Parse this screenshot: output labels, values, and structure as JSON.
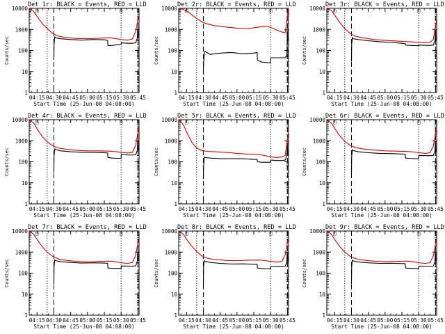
{
  "chart_data": {
    "type": "line",
    "layout": "3x3 grid",
    "shared": {
      "title_suffix": " BLACK = Events, RED = LLD",
      "xlabel": "Start Time (25-Jun-08 04:08:00)",
      "ylabel": "Counts/sec",
      "y_scale": "log",
      "ylim": [
        1,
        10000
      ],
      "y_tick_labels": [
        "1",
        "10",
        "100",
        "1000",
        "10000"
      ],
      "x_range_min": [
        248,
        346
      ],
      "x_ticks_min": [
        255,
        270,
        285,
        300,
        315,
        330,
        345
      ],
      "x_tick_labels": [
        "04:15",
        "04:30",
        "04:45",
        "05:00",
        "05:15",
        "05:30",
        "05:45"
      ],
      "marker_label": "□",
      "series_colors": {
        "events": "#000000",
        "lld": "#dd0000"
      },
      "grid": false
    },
    "panels": [
      {
        "title": "Det 1r",
        "vlines": {
          "dotted": [
            264,
            330
          ],
          "dashed": [
            270,
            345
          ]
        },
        "lld": {
          "x": [
            248,
            252,
            256,
            260,
            264,
            268,
            270,
            274,
            280,
            290,
            300,
            310,
            320,
            326,
            330,
            336,
            340,
            343,
            345,
            346
          ],
          "y": [
            10000,
            7000,
            3500,
            1800,
            1100,
            700,
            600,
            480,
            420,
            370,
            360,
            380,
            400,
            360,
            330,
            310,
            350,
            800,
            3000,
            4000
          ]
        },
        "events": {
          "x": [
            270,
            270.2,
            270.8,
            271.5,
            276,
            285,
            295,
            305,
            315,
            318,
            318.2,
            322,
            328,
            330,
            330.2,
            336,
            340,
            343,
            344.5,
            345,
            345.3
          ],
          "y": [
            35,
            200,
            450,
            400,
            360,
            330,
            310,
            330,
            320,
            300,
            170,
            175,
            190,
            195,
            230,
            220,
            220,
            230,
            400,
            1200,
            400
          ]
        }
      },
      {
        "title": "Det 2r",
        "vlines": {
          "dotted": [
            264,
            330
          ],
          "dashed": [
            270,
            345
          ]
        },
        "lld": {
          "x": [
            248,
            252,
            256,
            260,
            264,
            268,
            270,
            274,
            280,
            290,
            300,
            310,
            320,
            326,
            330,
            336,
            340,
            343,
            345,
            346
          ],
          "y": [
            10000,
            9000,
            7000,
            4800,
            3300,
            2400,
            2100,
            1800,
            1500,
            1300,
            1150,
            1100,
            1300,
            1400,
            1250,
            900,
            750,
            700,
            4000,
            10000
          ]
        },
        "events": {
          "x": [
            270,
            270.2,
            270.8,
            271.5,
            276,
            285,
            295,
            305,
            315,
            318,
            318.2,
            322,
            328,
            330,
            330.2,
            336,
            340,
            343,
            344.5,
            345,
            345.3
          ],
          "y": [
            10,
            25,
            75,
            90,
            65,
            75,
            80,
            70,
            75,
            80,
            35,
            28,
            26,
            26,
            45,
            45,
            45,
            45,
            60,
            700,
            300
          ]
        }
      },
      {
        "title": "Det 3r",
        "vlines": {
          "dotted": [
            264,
            330
          ],
          "dashed": [
            270,
            345
          ]
        },
        "lld": {
          "x": [
            248,
            252,
            256,
            260,
            264,
            268,
            270,
            274,
            280,
            290,
            300,
            310,
            320,
            326,
            330,
            336,
            340,
            343,
            345,
            346
          ],
          "y": [
            10000,
            8000,
            4000,
            2000,
            1100,
            700,
            580,
            470,
            400,
            330,
            300,
            280,
            260,
            250,
            240,
            230,
            240,
            330,
            1500,
            3000
          ]
        },
        "events": {
          "x": [
            270,
            270.2,
            270.8,
            271.5,
            276,
            285,
            295,
            305,
            315,
            318,
            318.2,
            322,
            328,
            330,
            330.2,
            336,
            340,
            343,
            344.5,
            345,
            345.3
          ],
          "y": [
            30,
            200,
            420,
            360,
            330,
            290,
            260,
            240,
            220,
            210,
            180,
            175,
            170,
            170,
            180,
            175,
            175,
            180,
            300,
            900,
            300
          ]
        }
      },
      {
        "title": "Det 4r",
        "vlines": {
          "dotted": [
            264,
            330
          ],
          "dashed": [
            270,
            345
          ]
        },
        "lld": {
          "x": [
            248,
            252,
            256,
            260,
            264,
            268,
            270,
            274,
            280,
            290,
            300,
            310,
            320,
            326,
            330,
            336,
            340,
            343,
            345,
            346
          ],
          "y": [
            10000,
            7000,
            3000,
            1500,
            900,
            620,
            540,
            450,
            400,
            350,
            330,
            330,
            320,
            300,
            280,
            260,
            280,
            600,
            2500,
            4000
          ]
        },
        "events": {
          "x": [
            270,
            270.2,
            270.8,
            271.5,
            276,
            285,
            295,
            305,
            315,
            318,
            318.2,
            322,
            328,
            330,
            330.2,
            336,
            340,
            343,
            344.5,
            345,
            345.3
          ],
          "y": [
            30,
            200,
            420,
            380,
            330,
            300,
            280,
            280,
            270,
            260,
            160,
            150,
            145,
            145,
            220,
            210,
            210,
            215,
            350,
            1000,
            350
          ]
        }
      },
      {
        "title": "Det 5r",
        "vlines": {
          "dotted": [
            264,
            330
          ],
          "dashed": [
            270,
            345
          ]
        },
        "lld": {
          "x": [
            248,
            252,
            256,
            260,
            264,
            268,
            270,
            274,
            280,
            290,
            300,
            310,
            320,
            326,
            330,
            336,
            340,
            343,
            345,
            346
          ],
          "y": [
            10000,
            6000,
            2000,
            800,
            450,
            350,
            330,
            310,
            300,
            280,
            250,
            230,
            220,
            190,
            170,
            160,
            170,
            200,
            1200,
            2500
          ]
        },
        "events": {
          "x": [
            270,
            270.2,
            270.8,
            271.5,
            276,
            285,
            295,
            305,
            315,
            318,
            318.2,
            322,
            328,
            330,
            330.2,
            336,
            340,
            343,
            344.5,
            345,
            345.3
          ],
          "y": [
            15,
            60,
            170,
            160,
            150,
            140,
            140,
            140,
            130,
            130,
            100,
            95,
            95,
            95,
            120,
            115,
            115,
            120,
            200,
            600,
            200
          ]
        }
      },
      {
        "title": "Det 6r",
        "vlines": {
          "dotted": [
            264,
            330
          ],
          "dashed": [
            270,
            345
          ]
        },
        "lld": {
          "x": [
            248,
            252,
            256,
            260,
            264,
            268,
            270,
            274,
            280,
            290,
            300,
            310,
            320,
            326,
            330,
            336,
            340,
            343,
            345,
            346
          ],
          "y": [
            10000,
            7000,
            3200,
            1600,
            950,
            650,
            560,
            470,
            410,
            360,
            330,
            320,
            310,
            290,
            270,
            250,
            270,
            550,
            2200,
            3500
          ]
        },
        "events": {
          "x": [
            270,
            270.2,
            270.8,
            271.5,
            276,
            285,
            295,
            305,
            315,
            318,
            318.2,
            322,
            328,
            330,
            330.2,
            336,
            340,
            343,
            344.5,
            345,
            345.3
          ],
          "y": [
            25,
            180,
            380,
            340,
            300,
            270,
            250,
            245,
            235,
            230,
            150,
            145,
            140,
            140,
            200,
            195,
            195,
            200,
            320,
            900,
            300
          ]
        }
      },
      {
        "title": "Det 7r",
        "vlines": {
          "dotted": [
            264,
            330
          ],
          "dashed": [
            270,
            345
          ]
        },
        "lld": {
          "x": [
            248,
            252,
            256,
            260,
            264,
            268,
            270,
            274,
            280,
            290,
            300,
            310,
            320,
            326,
            330,
            336,
            340,
            343,
            345,
            346
          ],
          "y": [
            10000,
            7000,
            3300,
            1700,
            1000,
            680,
            580,
            470,
            410,
            360,
            340,
            360,
            370,
            340,
            310,
            290,
            320,
            700,
            2800,
            4000
          ]
        },
        "events": {
          "x": [
            270,
            270.2,
            270.8,
            271.5,
            276,
            285,
            295,
            305,
            315,
            318,
            318.2,
            322,
            328,
            330,
            330.2,
            336,
            340,
            343,
            344.5,
            345,
            345.3
          ],
          "y": [
            30,
            200,
            430,
            390,
            350,
            320,
            300,
            310,
            300,
            290,
            175,
            170,
            170,
            170,
            220,
            215,
            215,
            220,
            380,
            1100,
            380
          ]
        }
      },
      {
        "title": "Det 8r",
        "vlines": {
          "dotted": [
            264,
            330
          ],
          "dashed": [
            270,
            345
          ]
        },
        "lld": {
          "x": [
            248,
            252,
            256,
            260,
            264,
            268,
            270,
            274,
            280,
            290,
            300,
            310,
            320,
            326,
            330,
            336,
            340,
            343,
            345,
            346
          ],
          "y": [
            10000,
            7000,
            3400,
            1800,
            1050,
            700,
            600,
            500,
            450,
            400,
            390,
            410,
            420,
            390,
            360,
            340,
            360,
            750,
            3000,
            4500
          ]
        },
        "events": {
          "x": [
            270,
            270.2,
            270.8,
            271.5,
            276,
            285,
            295,
            305,
            315,
            318,
            318.2,
            322,
            328,
            330,
            330.2,
            336,
            340,
            343,
            344.5,
            345,
            345.3
          ],
          "y": [
            25,
            190,
            400,
            360,
            320,
            290,
            270,
            275,
            265,
            260,
            175,
            165,
            160,
            160,
            210,
            205,
            205,
            210,
            350,
            1000,
            350
          ]
        }
      },
      {
        "title": "Det 9r",
        "vlines": {
          "dotted": [
            264,
            330
          ],
          "dashed": [
            270,
            345
          ]
        },
        "lld": {
          "x": [
            248,
            252,
            256,
            260,
            264,
            268,
            270,
            274,
            280,
            290,
            300,
            310,
            320,
            326,
            330,
            336,
            340,
            343,
            345,
            346
          ],
          "y": [
            10000,
            7000,
            3300,
            1700,
            1000,
            680,
            580,
            480,
            420,
            370,
            350,
            360,
            370,
            340,
            310,
            290,
            310,
            650,
            2600,
            4000
          ]
        },
        "events": {
          "x": [
            270,
            270.2,
            270.8,
            271.5,
            276,
            285,
            295,
            305,
            315,
            318,
            318.2,
            322,
            328,
            330,
            330.2,
            336,
            340,
            343,
            344.5,
            345,
            345.3
          ],
          "y": [
            30,
            200,
            420,
            380,
            340,
            310,
            290,
            295,
            285,
            280,
            175,
            170,
            165,
            165,
            215,
            210,
            210,
            215,
            360,
            1050,
            360
          ]
        }
      }
    ]
  }
}
